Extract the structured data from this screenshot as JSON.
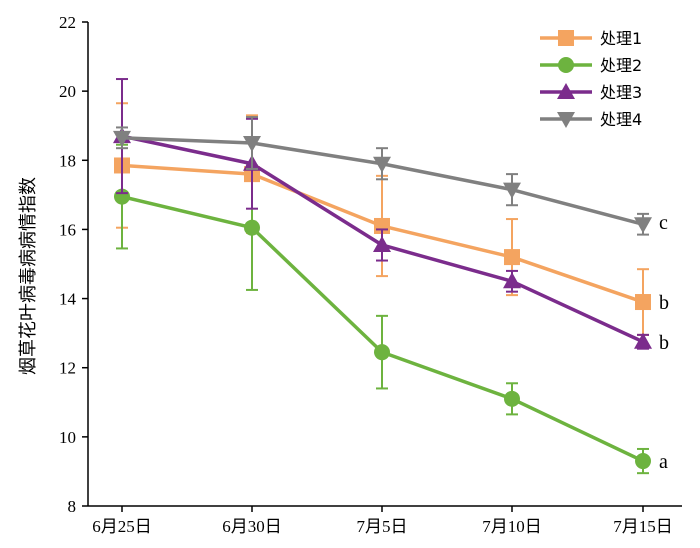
{
  "chart_data": {
    "type": "line",
    "categories": [
      "6月25日",
      "6月30日",
      "7月5日",
      "7月10日",
      "7月15日"
    ],
    "ylabel": "烟草花叶病毒病病情指数",
    "xlabel": "",
    "title": "",
    "ylim": [
      8,
      22
    ],
    "yticks": [
      8,
      10,
      12,
      14,
      16,
      18,
      20,
      22
    ],
    "legend_position": "top-right",
    "grid": false,
    "series": [
      {
        "name": "处理1",
        "color": "#F4A460",
        "marker": "square",
        "values": [
          17.85,
          17.6,
          16.1,
          15.2,
          13.9
        ],
        "errors": [
          1.8,
          1.7,
          1.45,
          1.1,
          0.95
        ]
      },
      {
        "name": "处理2",
        "color": "#6DB33F",
        "marker": "circle",
        "values": [
          16.95,
          16.05,
          12.45,
          11.1,
          9.3
        ],
        "errors": [
          1.5,
          1.8,
          1.05,
          0.45,
          0.35
        ]
      },
      {
        "name": "处理3",
        "color": "#7B2C8C",
        "marker": "triangle-up",
        "values": [
          18.7,
          17.9,
          15.55,
          14.5,
          12.75
        ],
        "errors": [
          1.65,
          1.3,
          0.45,
          0.3,
          0.2
        ]
      },
      {
        "name": "处理4",
        "color": "#808080",
        "marker": "triangle-down",
        "values": [
          18.65,
          18.5,
          17.9,
          17.15,
          16.15
        ],
        "errors": [
          0.3,
          0.75,
          0.45,
          0.45,
          0.3
        ]
      }
    ],
    "annotations": [
      {
        "text": "c",
        "series": "处理4",
        "category": "7月15日"
      },
      {
        "text": "b",
        "series": "处理1",
        "category": "7月15日"
      },
      {
        "text": "b",
        "series": "处理3",
        "category": "7月15日"
      },
      {
        "text": "a",
        "series": "处理2",
        "category": "7月15日"
      }
    ]
  }
}
